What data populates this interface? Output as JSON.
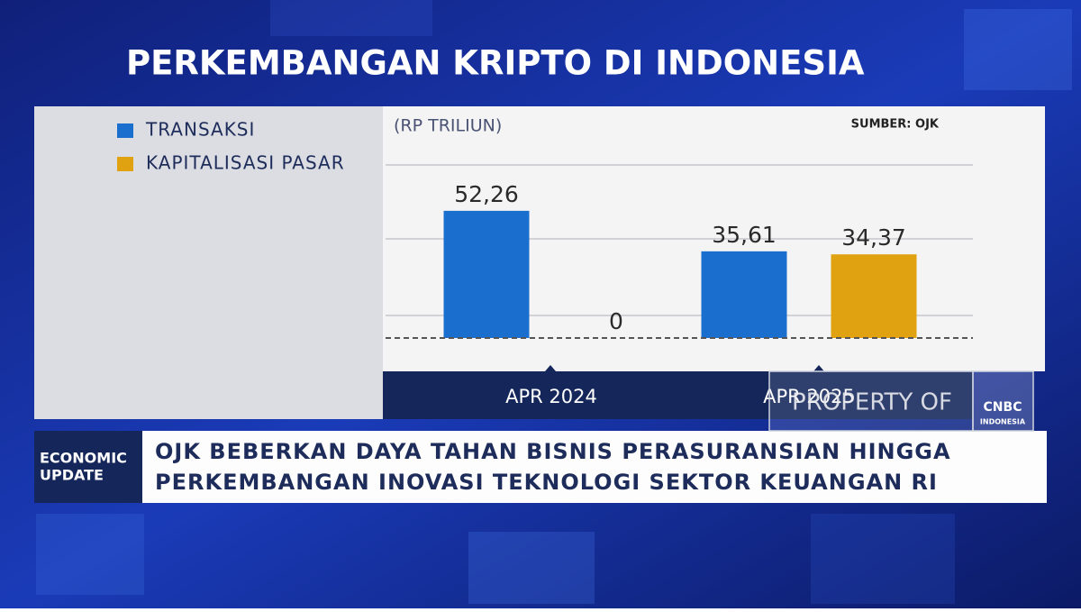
{
  "chart_data": {
    "type": "bar",
    "title": "PERKEMBANGAN KRIPTO DI INDONESIA",
    "unit_label": "(RP TRILIUN)",
    "source": "SUMBER: OJK",
    "categories": [
      "APR 2024",
      "APR 2025"
    ],
    "series": [
      {
        "name": "TRANSAKSI",
        "color": "#1a6fce",
        "values": [
          52.26,
          35.61
        ],
        "value_labels": [
          "52,26",
          "35,61"
        ]
      },
      {
        "name": "KAPITALISASI PASAR",
        "color": "#e0a210",
        "values": [
          0,
          34.37
        ],
        "value_labels": [
          "0",
          "34,37"
        ]
      }
    ],
    "ylim": [
      0,
      90
    ],
    "legend": "top-left"
  },
  "banner": {
    "label": [
      "ECONOMIC",
      "UPDATE"
    ],
    "headline": [
      "OJK BEBERKAN DAYA TAHAN BISNIS PERASURANSIAN HINGGA",
      "PERKEMBANGAN INOVASI TEKNOLOGI SEKTOR KEUANGAN RI"
    ]
  },
  "watermark": "PROPERTY OF",
  "logo": [
    "CNBC",
    "INDONESIA"
  ]
}
